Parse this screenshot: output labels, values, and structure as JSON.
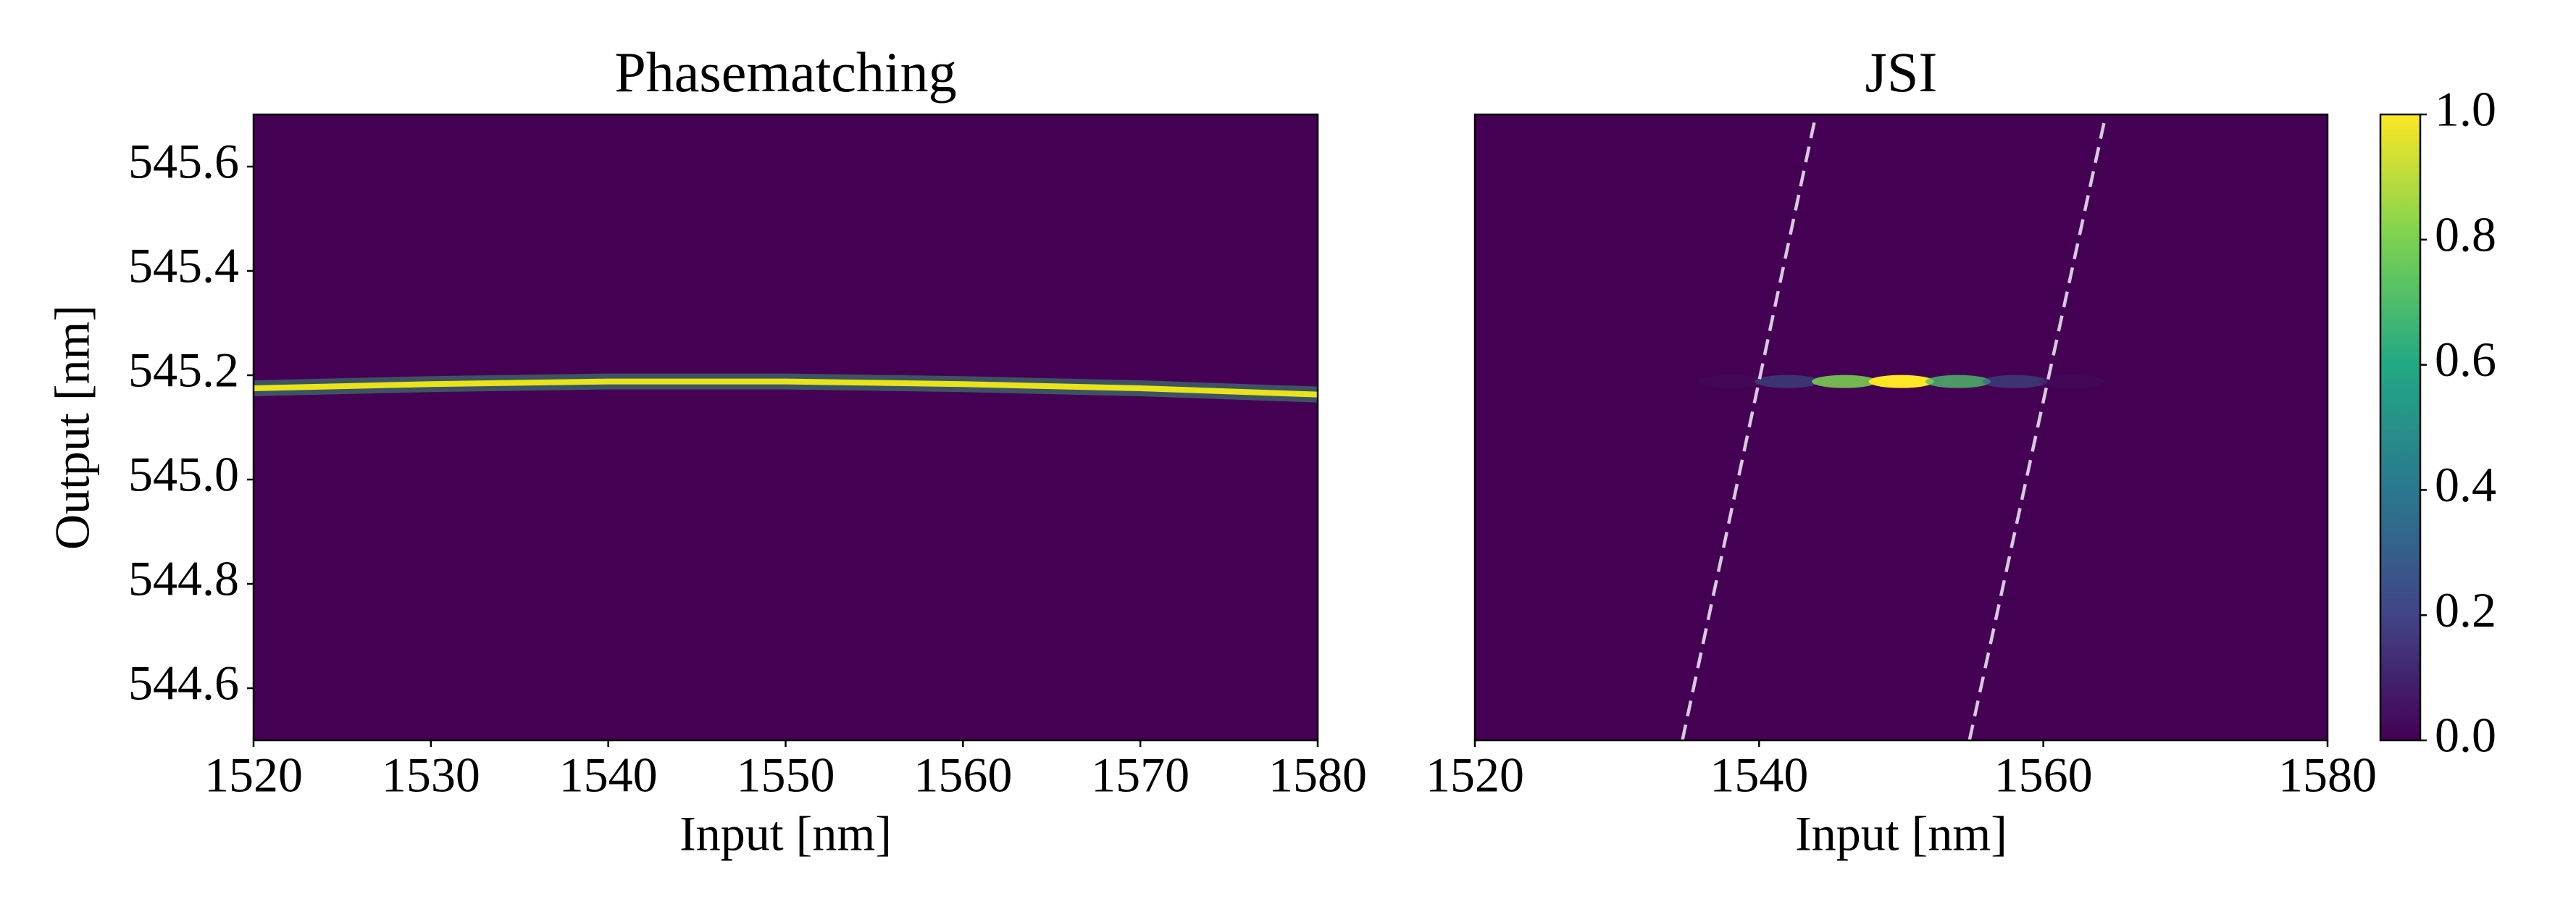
{
  "chart_data": [
    {
      "type": "heatmap",
      "title": "Phasematching",
      "x_label": "Input [nm]",
      "y_label": "Output [nm]",
      "background": "#440154",
      "xlim": [
        1520,
        1580
      ],
      "ylim": [
        544.5,
        545.7
      ],
      "xticks": [
        1520,
        1530,
        1540,
        1550,
        1560,
        1570,
        1580
      ],
      "yticks": [
        544.6,
        544.8,
        {
          "value": 545.0,
          "label": "545.0"
        },
        545.2,
        545.4,
        545.6
      ],
      "series": [
        {
          "color": "#e8e419",
          "glow": "#35b779",
          "x": [
            1520,
            1530,
            1540,
            1550,
            1560,
            1570,
            1580
          ],
          "values": [
            545.175,
            545.183,
            545.188,
            545.188,
            545.183,
            545.175,
            545.163
          ]
        }
      ]
    },
    {
      "type": "heatmap",
      "title": "JSI",
      "x_label": "Input [nm]",
      "background": "#440154",
      "xlim": [
        1520,
        1580
      ],
      "ylim": [
        544.5,
        545.7
      ],
      "xticks": [
        1520,
        1540,
        1560,
        1580
      ],
      "blob": {
        "x": [
          1538,
          1542,
          1546,
          1550,
          1554,
          1558,
          1562
        ],
        "y": [
          545.188,
          545.188,
          545.188,
          545.188,
          545.188,
          545.188,
          545.188
        ],
        "values": [
          0.05,
          0.3,
          0.8,
          1.0,
          0.7,
          0.3,
          0.05
        ]
      },
      "lines": [
        {
          "color": "#d8c8e0",
          "dash": true,
          "x": [
            1534.6,
            1544.0
          ],
          "values": [
            544.5,
            545.7
          ]
        },
        {
          "color": "#d8c8e0",
          "dash": true,
          "x": [
            1554.8,
            1564.4
          ],
          "values": [
            544.5,
            545.7
          ]
        }
      ],
      "colorbar": {
        "lim": [
          0,
          1
        ],
        "ticks": [
          {
            "value": 0,
            "label": "0.0"
          },
          {
            "value": 0.2,
            "label": "0.2"
          },
          {
            "value": 0.4,
            "label": "0.4"
          },
          {
            "value": 0.6,
            "label": "0.6"
          },
          {
            "value": 0.8,
            "label": "0.8"
          },
          {
            "value": 1,
            "label": "1.0"
          }
        ],
        "colors": [
          "#440154",
          "#414487",
          "#2a788e",
          "#22a884",
          "#7ad151",
          "#fde725"
        ]
      }
    }
  ]
}
